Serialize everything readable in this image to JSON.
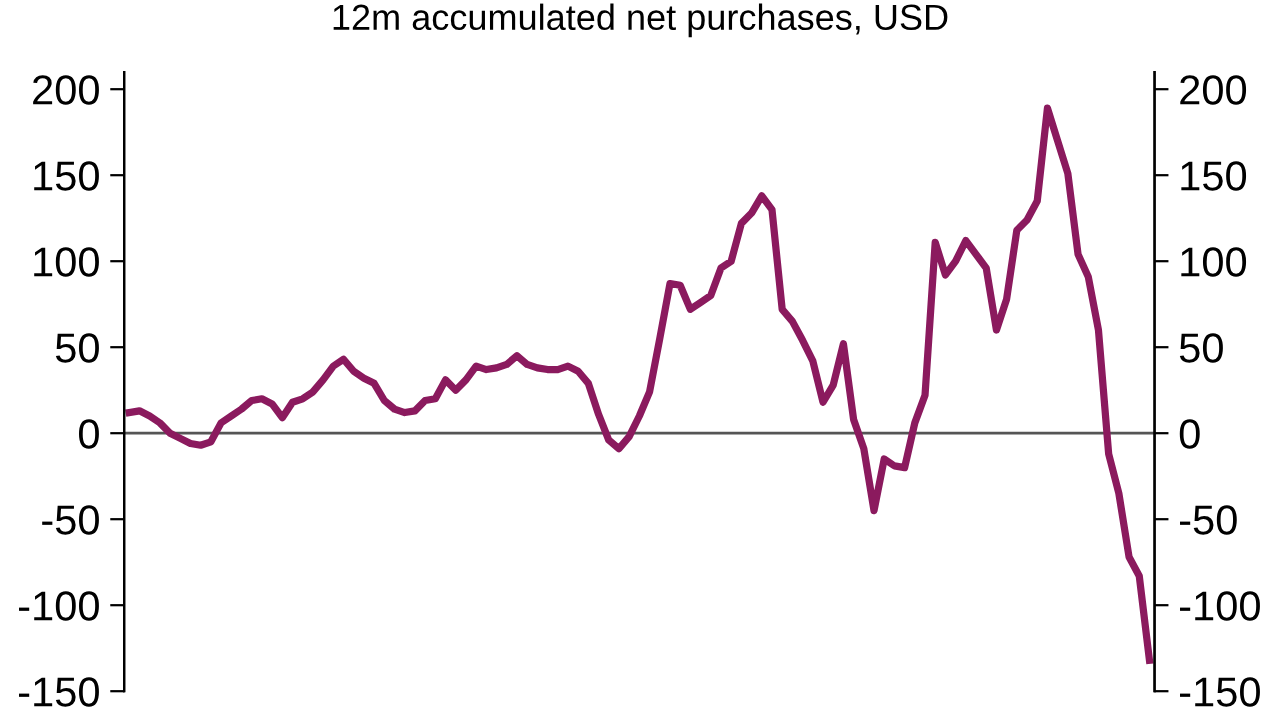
{
  "chart_data": {
    "type": "line",
    "title": "12m accumulated net purchases, USD",
    "categories": [
      null,
      null,
      null,
      null,
      null,
      null,
      null,
      null,
      null,
      null,
      null,
      null,
      null,
      null,
      null,
      null,
      null,
      null,
      null,
      null,
      null,
      null,
      null,
      null,
      null,
      null,
      null,
      null,
      null,
      null,
      null,
      null,
      null,
      null,
      null,
      null,
      null,
      null,
      null,
      null,
      null,
      null,
      null,
      null,
      null,
      null,
      null,
      null,
      null,
      null,
      null,
      null,
      null,
      null,
      null,
      null,
      null,
      null,
      null,
      null,
      null,
      null,
      null,
      null,
      null,
      null,
      null,
      null,
      null,
      null,
      null,
      null,
      null,
      null,
      null,
      null,
      null,
      null,
      null,
      null,
      null,
      null,
      null,
      null,
      null,
      null,
      null,
      null,
      null,
      null,
      null,
      null,
      null,
      null,
      null,
      null,
      null,
      null,
      null,
      null,
      null
    ],
    "series": [
      {
        "color": "#8b1a5e",
        "values": [
          12,
          13,
          10,
          6,
          0,
          -3,
          -6,
          -7,
          -5,
          6,
          10,
          14,
          19,
          20,
          17,
          9,
          18,
          20,
          24,
          31,
          39,
          43,
          36,
          32,
          29,
          19,
          14,
          12,
          13,
          19,
          20,
          31,
          25,
          31,
          39,
          37,
          38,
          40,
          45,
          40,
          38,
          37,
          37,
          39,
          36,
          29,
          11,
          -4,
          -9,
          -2,
          10,
          24,
          55,
          87,
          86,
          72,
          76,
          80,
          96,
          100,
          122,
          128,
          138,
          130,
          72,
          65,
          54,
          42,
          18,
          28,
          52,
          8,
          -9,
          -45,
          -15,
          -19,
          -20,
          6,
          22,
          111,
          92,
          100,
          112,
          104,
          96,
          60,
          78,
          118,
          124,
          135,
          189,
          170,
          151,
          104,
          91,
          60,
          -12,
          -35,
          -72,
          -83,
          -132
        ]
      }
    ],
    "ylim": [
      -150,
      210
    ],
    "yticks": [
      -150,
      -100,
      -50,
      0,
      50,
      100,
      150,
      200
    ],
    "y2lim": [
      -150,
      210
    ],
    "y2ticks": [
      -150,
      -100,
      -50,
      0,
      50,
      100,
      150,
      200
    ],
    "ref_lines": [
      {
        "axis": "y",
        "value": 0,
        "color": "#555555"
      }
    ],
    "grid": false,
    "legend": false,
    "marker": "none",
    "line_style": "solid",
    "tick_labels": "y"
  }
}
